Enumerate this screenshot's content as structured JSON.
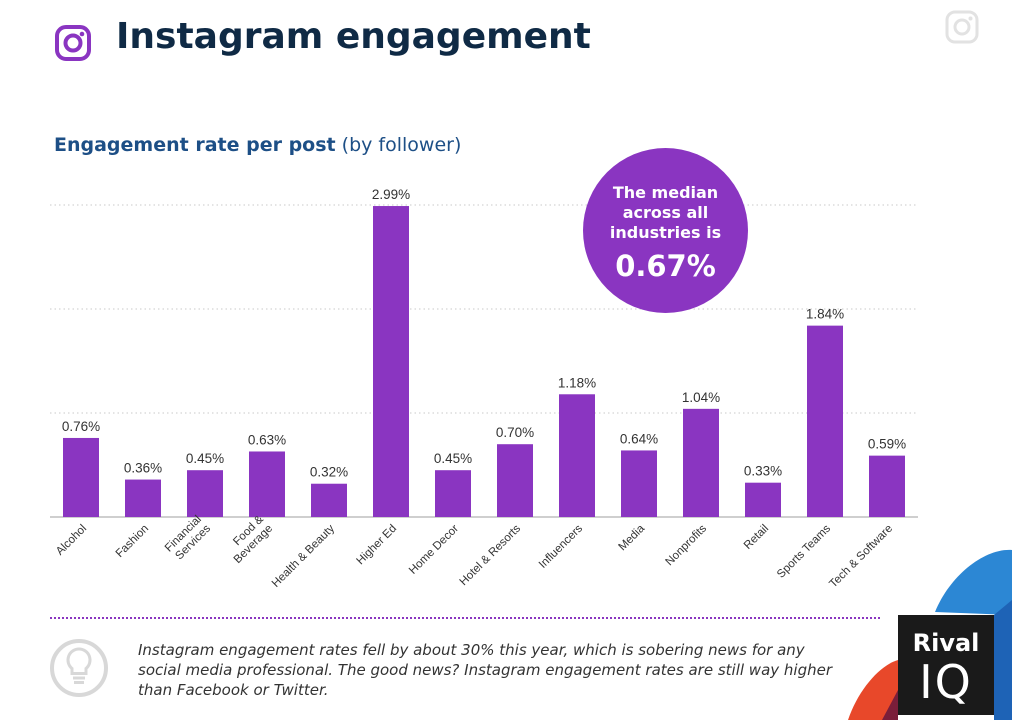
{
  "header": {
    "title": "Instagram engagement",
    "icon": "instagram-icon"
  },
  "chart_header": {
    "bold": "Engagement rate per post",
    "light": "(by follower)"
  },
  "callout": {
    "text": "The median across all industries is",
    "value": "0.67%"
  },
  "footer": {
    "note": "Instagram engagement rates fell by about 30% this year, which is sobering news for any social media professional. The good news? Instagram engagement rates are still way higher than Facebook or Twitter.",
    "icon": "lightbulb-icon"
  },
  "logo": {
    "line1": "Rival",
    "line2": "IQ"
  },
  "colors": {
    "bar": "#8a35c1",
    "title": "#0f2a45",
    "subtitle": "#1d4f86"
  },
  "chart_data": {
    "type": "bar",
    "title": "Engagement rate per post",
    "unit": "%",
    "categories": [
      "Alcohol",
      "Fashion",
      "Financial Services",
      "Food & Beverage",
      "Health & Beauty",
      "Higher Ed",
      "Home Decor",
      "Hotel & Resorts",
      "Influencers",
      "Media",
      "Nonprofits",
      "Retail",
      "Sports Teams",
      "Tech & Software"
    ],
    "category_lines": [
      [
        "Alcohol"
      ],
      [
        "Fashion"
      ],
      [
        "Financial",
        "Services"
      ],
      [
        "Food &",
        "Beverage"
      ],
      [
        "Health & Beauty"
      ],
      [
        "Higher Ed"
      ],
      [
        "Home Decor"
      ],
      [
        "Hotel & Resorts"
      ],
      [
        "Influencers"
      ],
      [
        "Media"
      ],
      [
        "Nonprofits"
      ],
      [
        "Retail"
      ],
      [
        "Sports Teams"
      ],
      [
        "Tech & Software"
      ]
    ],
    "values": [
      0.76,
      0.36,
      0.45,
      0.63,
      0.32,
      2.99,
      0.45,
      0.7,
      1.18,
      0.64,
      1.04,
      0.33,
      1.84,
      0.59
    ],
    "labels": [
      "0.76%",
      "0.36%",
      "0.45%",
      "0.63%",
      "0.32%",
      "2.99%",
      "0.45%",
      "0.70%",
      "1.18%",
      "0.64%",
      "1.04%",
      "0.33%",
      "1.84%",
      "0.59%"
    ],
    "ylim": [
      0,
      3
    ],
    "grid": true
  }
}
